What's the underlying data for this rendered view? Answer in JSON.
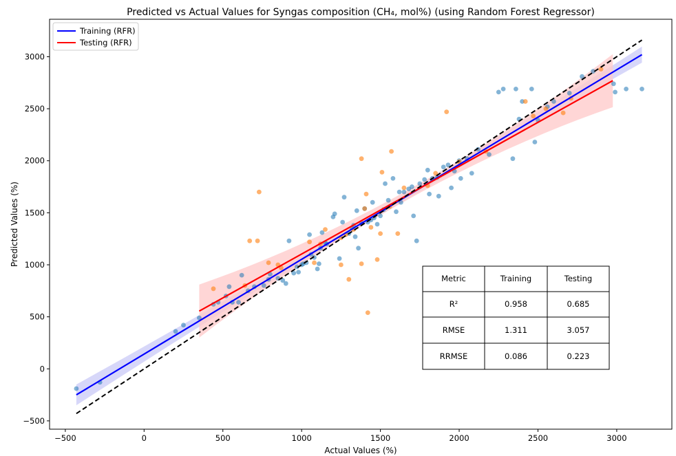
{
  "chart_data": {
    "type": "scatter",
    "title": "Predicted vs Actual Values for Syngas composition (CH₄, mol%) (using Random Forest Regressor)",
    "xlabel": "Actual Values (%)",
    "ylabel": "Predicted Values (%)",
    "xlim": [
      -600,
      3350
    ],
    "ylim": [
      -580,
      3360
    ],
    "xticks": [
      -500,
      0,
      500,
      1000,
      1500,
      2000,
      2500,
      3000
    ],
    "yticks": [
      -500,
      0,
      500,
      1000,
      1500,
      2000,
      2500,
      3000
    ],
    "xtick_labels": [
      "−500",
      "0",
      "500",
      "1000",
      "1500",
      "2000",
      "2500",
      "3000"
    ],
    "ytick_labels": [
      "−500",
      "0",
      "500",
      "1000",
      "1500",
      "2000",
      "2500",
      "3000"
    ],
    "grid": false,
    "legend_position": "top-left",
    "colors": {
      "training_points": "#1f77b4",
      "testing_points": "#ff7f0e",
      "training_line": "#0000ff",
      "testing_line": "#ff0000",
      "training_band": "#c9c9f7",
      "testing_band": "#ffcccc",
      "identity_line": "#000000"
    },
    "series": [
      {
        "name": "Training (RFR)",
        "kind": "scatter+fit",
        "fit": {
          "x": [
            -430,
            3160
          ],
          "y": [
            -250,
            3020
          ]
        },
        "points": [
          [
            -430,
            -190
          ],
          [
            -280,
            -130
          ],
          [
            200,
            360
          ],
          [
            250,
            420
          ],
          [
            350,
            490
          ],
          [
            440,
            620
          ],
          [
            470,
            640
          ],
          [
            520,
            700
          ],
          [
            540,
            790
          ],
          [
            560,
            640
          ],
          [
            600,
            640
          ],
          [
            620,
            900
          ],
          [
            660,
            750
          ],
          [
            700,
            790
          ],
          [
            760,
            800
          ],
          [
            790,
            860
          ],
          [
            800,
            910
          ],
          [
            850,
            870
          ],
          [
            880,
            850
          ],
          [
            900,
            820
          ],
          [
            920,
            1230
          ],
          [
            950,
            920
          ],
          [
            970,
            980
          ],
          [
            980,
            930
          ],
          [
            1000,
            1000
          ],
          [
            1010,
            1010
          ],
          [
            1030,
            1020
          ],
          [
            1050,
            1290
          ],
          [
            1060,
            1100
          ],
          [
            1080,
            1070
          ],
          [
            1100,
            960
          ],
          [
            1110,
            1010
          ],
          [
            1120,
            1160
          ],
          [
            1130,
            1310
          ],
          [
            1150,
            1210
          ],
          [
            1160,
            1200
          ],
          [
            1200,
            1460
          ],
          [
            1210,
            1490
          ],
          [
            1240,
            1060
          ],
          [
            1260,
            1410
          ],
          [
            1270,
            1650
          ],
          [
            1300,
            1300
          ],
          [
            1320,
            1350
          ],
          [
            1330,
            1380
          ],
          [
            1340,
            1270
          ],
          [
            1350,
            1520
          ],
          [
            1360,
            1160
          ],
          [
            1380,
            1400
          ],
          [
            1400,
            1540
          ],
          [
            1420,
            1410
          ],
          [
            1440,
            1430
          ],
          [
            1450,
            1600
          ],
          [
            1460,
            1450
          ],
          [
            1480,
            1390
          ],
          [
            1500,
            1470
          ],
          [
            1520,
            1530
          ],
          [
            1530,
            1780
          ],
          [
            1550,
            1620
          ],
          [
            1580,
            1830
          ],
          [
            1600,
            1510
          ],
          [
            1620,
            1700
          ],
          [
            1630,
            1600
          ],
          [
            1650,
            1700
          ],
          [
            1680,
            1730
          ],
          [
            1700,
            1750
          ],
          [
            1710,
            1470
          ],
          [
            1730,
            1230
          ],
          [
            1750,
            1780
          ],
          [
            1780,
            1820
          ],
          [
            1800,
            1910
          ],
          [
            1810,
            1680
          ],
          [
            1830,
            1830
          ],
          [
            1860,
            1840
          ],
          [
            1870,
            1660
          ],
          [
            1900,
            1940
          ],
          [
            1930,
            1960
          ],
          [
            1950,
            1740
          ],
          [
            1970,
            1900
          ],
          [
            2000,
            2000
          ],
          [
            2010,
            1830
          ],
          [
            2050,
            2020
          ],
          [
            2080,
            1880
          ],
          [
            2120,
            2110
          ],
          [
            2190,
            2060
          ],
          [
            2250,
            2660
          ],
          [
            2280,
            2690
          ],
          [
            2340,
            2020
          ],
          [
            2360,
            2690
          ],
          [
            2380,
            2400
          ],
          [
            2400,
            2570
          ],
          [
            2460,
            2690
          ],
          [
            2480,
            2180
          ],
          [
            2500,
            2390
          ],
          [
            2560,
            2520
          ],
          [
            2600,
            2570
          ],
          [
            2700,
            2650
          ],
          [
            2780,
            2810
          ],
          [
            2850,
            2860
          ],
          [
            2980,
            2740
          ],
          [
            2990,
            2660
          ],
          [
            3060,
            2690
          ],
          [
            3160,
            2690
          ]
        ]
      },
      {
        "name": "Testing (RFR)",
        "kind": "scatter+fit",
        "fit": {
          "x": [
            350,
            2975
          ],
          "y": [
            555,
            2770
          ]
        },
        "points": [
          [
            440,
            770
          ],
          [
            640,
            800
          ],
          [
            670,
            1230
          ],
          [
            720,
            1230
          ],
          [
            730,
            1700
          ],
          [
            790,
            1020
          ],
          [
            850,
            1000
          ],
          [
            870,
            970
          ],
          [
            1050,
            1220
          ],
          [
            1080,
            1020
          ],
          [
            1120,
            1200
          ],
          [
            1150,
            1340
          ],
          [
            1250,
            1000
          ],
          [
            1250,
            1260
          ],
          [
            1280,
            1290
          ],
          [
            1300,
            860
          ],
          [
            1330,
            1340
          ],
          [
            1380,
            1010
          ],
          [
            1380,
            2020
          ],
          [
            1400,
            1540
          ],
          [
            1410,
            1680
          ],
          [
            1420,
            540
          ],
          [
            1440,
            1360
          ],
          [
            1480,
            1050
          ],
          [
            1500,
            1300
          ],
          [
            1510,
            1890
          ],
          [
            1560,
            1560
          ],
          [
            1570,
            2090
          ],
          [
            1610,
            1300
          ],
          [
            1650,
            1740
          ],
          [
            1800,
            1760
          ],
          [
            1850,
            1880
          ],
          [
            1920,
            2470
          ],
          [
            2000,
            1990
          ],
          [
            2170,
            2090
          ],
          [
            2420,
            2570
          ],
          [
            2470,
            2430
          ],
          [
            2550,
            2500
          ],
          [
            2660,
            2460
          ],
          [
            2710,
            2600
          ],
          [
            2900,
            2880
          ]
        ]
      },
      {
        "name": "",
        "kind": "identity",
        "x": [
          -430,
          3160
        ],
        "y": [
          -430,
          3160
        ]
      }
    ],
    "table": {
      "headers": [
        "Metric",
        "Training",
        "Testing"
      ],
      "rows": [
        [
          "R²",
          "0.958",
          "0.685"
        ],
        [
          "RMSE",
          "1.311",
          "3.057"
        ],
        [
          "RRMSE",
          "0.086",
          "0.223"
        ]
      ]
    }
  }
}
